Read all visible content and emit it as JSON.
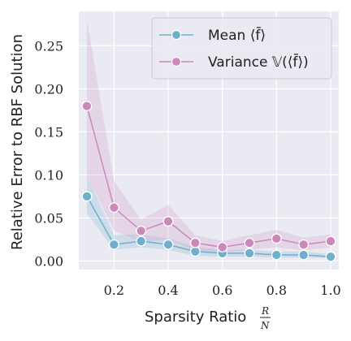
{
  "chart_data": {
    "type": "line",
    "xlabel": "Sparsity Ratio",
    "xlabel_frac": {
      "num": "R",
      "den": "N"
    },
    "ylabel": "Relative Error to RBF Solution",
    "xlim": [
      0.07,
      1.03
    ],
    "ylim": [
      -0.01,
      0.29
    ],
    "xticks": [
      0.2,
      0.4,
      0.6,
      0.8,
      1.0
    ],
    "xtick_labels": [
      "0.2",
      "0.4",
      "0.6",
      "0.8",
      "1.0"
    ],
    "yticks": [
      0.0,
      0.05,
      0.1,
      0.15,
      0.2,
      0.25
    ],
    "ytick_labels": [
      "0.00",
      "0.05",
      "0.10",
      "0.15",
      "0.20",
      "0.25"
    ],
    "grid": true,
    "legend_position": "top-right",
    "background": "#EAEAF2",
    "x": [
      0.1,
      0.2,
      0.3,
      0.4,
      0.5,
      0.6,
      0.7,
      0.8,
      0.9,
      1.0
    ],
    "series": [
      {
        "name": "Mean ⟨f̄⟩",
        "color": "#6FAFCB",
        "values": [
          0.075,
          0.019,
          0.023,
          0.019,
          0.011,
          0.009,
          0.009,
          0.007,
          0.007,
          0.005
        ],
        "lower": [
          0.055,
          0.013,
          0.016,
          0.013,
          0.006,
          0.005,
          0.005,
          0.004,
          0.004,
          0.003
        ],
        "upper": [
          0.1,
          0.03,
          0.031,
          0.026,
          0.016,
          0.013,
          0.013,
          0.011,
          0.011,
          0.008
        ]
      },
      {
        "name": "Variance 𝕍(⟨f̄⟩)",
        "color": "#CC88BB",
        "values": [
          0.18,
          0.062,
          0.035,
          0.046,
          0.021,
          0.016,
          0.021,
          0.026,
          0.019,
          0.023
        ],
        "lower": [
          0.1,
          0.035,
          0.022,
          0.025,
          0.012,
          0.01,
          0.013,
          0.016,
          0.012,
          0.016
        ],
        "upper": [
          0.28,
          0.093,
          0.048,
          0.065,
          0.03,
          0.023,
          0.03,
          0.036,
          0.027,
          0.031
        ]
      }
    ]
  }
}
